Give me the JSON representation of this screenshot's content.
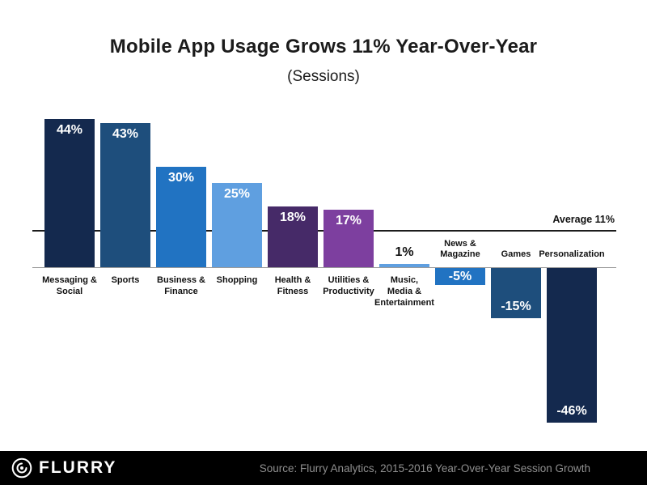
{
  "header": {
    "title": "Mobile App Usage Grows 11% Year-Over-Year",
    "subtitle": "(Sessions)"
  },
  "chart_data": {
    "type": "bar",
    "categories": [
      "Messaging & Social",
      "Sports",
      "Business & Finance",
      "Shopping",
      "Health & Fitness",
      "Utilities & Productivity",
      "Music, Media & Entertainment",
      "News & Magazine",
      "Games",
      "Personalization"
    ],
    "category_labels": [
      "Messaging &\nSocial",
      "Sports",
      "Business &\nFinance",
      "Shopping",
      "Health &\nFitness",
      "Utilities &\nProductivity",
      "Music,\nMedia &\nEntertainment",
      "News &\nMagazine",
      "Games",
      "Personalization"
    ],
    "values": [
      44,
      43,
      30,
      25,
      18,
      17,
      1,
      -5,
      -15,
      -46
    ],
    "value_labels": [
      "44%",
      "43%",
      "30%",
      "25%",
      "18%",
      "17%",
      "1%",
      "-5%",
      "-15%",
      "-46%"
    ],
    "bar_colors": [
      "#14294e",
      "#1e4e7c",
      "#2173c2",
      "#5f9fe0",
      "#462a68",
      "#7d3f9f",
      "#5f9fe0",
      "#2173c2",
      "#1e4e7c",
      "#14294e"
    ],
    "average": 11,
    "average_label": "Average 11%",
    "ylim": [
      -50,
      50
    ],
    "baseline": 0,
    "grid": false,
    "legend": "none"
  },
  "footer": {
    "brand": "FLURRY",
    "source": "Source: Flurry Analytics, 2015-2016 Year-Over-Year Session Growth",
    "background": "#000000",
    "source_color": "#8f8f8f"
  }
}
